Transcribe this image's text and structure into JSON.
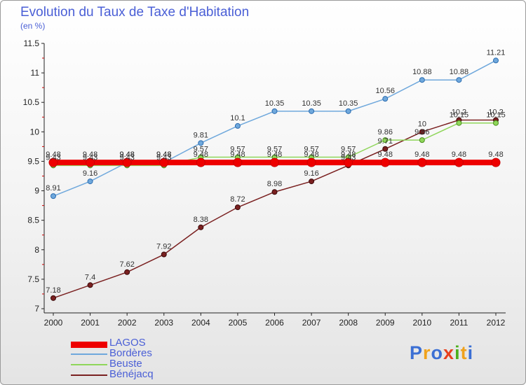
{
  "title": "Evolution du Taux de Taxe d'Habitation",
  "subtitle": "(en %)",
  "logo": {
    "letters": [
      "P",
      "r",
      "o",
      "x",
      "i",
      "t",
      "i"
    ],
    "colors": [
      "#3b6fd4",
      "#f0a21c",
      "#3b6fd4",
      "#e8401e",
      "#4caf1c",
      "#f0a21c",
      "#3b6fd4"
    ]
  },
  "chart_data": {
    "type": "line",
    "x": [
      "2000",
      "2001",
      "2002",
      "2003",
      "2004",
      "2005",
      "2006",
      "2007",
      "2008",
      "2009",
      "2010",
      "2011",
      "2012"
    ],
    "ylim": [
      7,
      11.5
    ],
    "yticks": [
      "7",
      "7.5",
      "8",
      "8.5",
      "9",
      "9.5",
      "10",
      "10.5",
      "11",
      "11.5"
    ],
    "grid": false,
    "series": [
      {
        "name": "LAGOS",
        "color": "#ee0000",
        "values": [
          9.48,
          9.48,
          9.48,
          9.48,
          9.48,
          9.48,
          9.48,
          9.48,
          9.48,
          9.48,
          9.48,
          9.48,
          9.48
        ],
        "labels": [
          "9.48",
          "9.48",
          "9.48",
          "9.48",
          "9.48",
          "9.48",
          "9.48",
          "9.48",
          "9.48",
          "9.48",
          "9.48",
          "9.48",
          "9.48"
        ]
      },
      {
        "name": "Bordères",
        "color": "#6fa8dc",
        "values": [
          8.91,
          9.16,
          9.48,
          9.48,
          9.81,
          10.1,
          10.35,
          10.35,
          10.35,
          10.56,
          10.88,
          10.88,
          11.21
        ],
        "labels": [
          "8.91",
          "9.16",
          "9.48",
          "9.48",
          "9.81",
          "10.1",
          "10.35",
          "10.35",
          "10.35",
          "10.56",
          "10.88",
          "10.88",
          "11.21"
        ]
      },
      {
        "name": "Beuste",
        "color": "#8fd65a",
        "values": [
          9.43,
          9.43,
          9.43,
          9.43,
          9.57,
          9.57,
          9.57,
          9.57,
          9.57,
          9.86,
          9.86,
          10.15,
          10.15
        ],
        "labels": [
          "9.43",
          "9.43",
          "9.43",
          "9.43",
          "9.57",
          "9.57",
          "9.57",
          "9.57",
          "9.57",
          "9.86",
          "9.86",
          "10.15",
          "10.15"
        ]
      },
      {
        "name": "Bénéjacq",
        "color": "#7a2020",
        "values": [
          7.18,
          7.4,
          7.62,
          7.92,
          8.38,
          8.72,
          8.98,
          9.16,
          9.43,
          9.71,
          10,
          10.2,
          10.2
        ],
        "labels": [
          "7.18",
          "7.4",
          "7.62",
          "7.92",
          "8.38",
          "8.72",
          "8.98",
          "9.16",
          "9.43",
          "9.71",
          "10",
          "10.2",
          "10.2"
        ]
      }
    ]
  }
}
